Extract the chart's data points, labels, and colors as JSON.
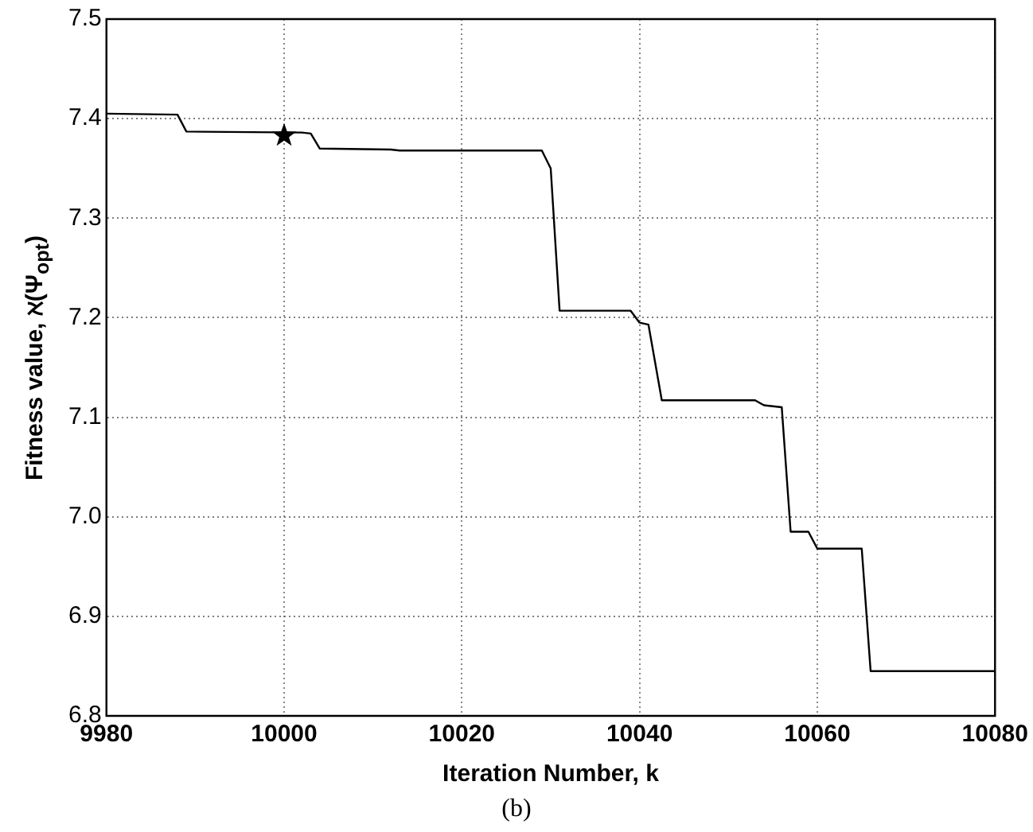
{
  "chart_data": {
    "type": "line",
    "xlabel": "Iteration Number, k",
    "ylabel": "Fitness value, ℵ(Ψ$_{opt}$)",
    "xlim": [
      9980,
      10080
    ],
    "xticks": [
      9980,
      10000,
      10020,
      10040,
      10060,
      10080
    ],
    "ylim": [
      6.8,
      7.5
    ],
    "yticks": [
      6.8,
      6.9,
      {
        "value": 7,
        "label": "7.0"
      },
      7.1,
      7.2,
      7.3,
      7.4,
      7.5
    ],
    "grid": true,
    "legend": false,
    "series": [
      {
        "type": "line",
        "color": "#000000",
        "marker": "none",
        "line_style": "solid",
        "x": [
          9980,
          9988,
          9989,
          10002,
          10003,
          10004,
          10012,
          10013,
          10029,
          10030,
          10031,
          10039,
          10040,
          10041,
          10042.5,
          10053,
          10054,
          10056,
          10057,
          10059,
          10060,
          10065,
          10066,
          10080
        ],
        "values": [
          7.405,
          7.404,
          7.387,
          7.386,
          7.385,
          7.37,
          7.369,
          7.368,
          7.368,
          7.35,
          7.207,
          7.207,
          7.195,
          7.193,
          7.117,
          7.117,
          7.112,
          7.11,
          6.985,
          6.985,
          6.968,
          6.968,
          6.845,
          6.845
        ]
      },
      {
        "type": "scatter",
        "color": "#000000",
        "marker": "star",
        "x": [
          10000
        ],
        "values": [
          7.383
        ]
      }
    ],
    "annotations": [
      "(b)"
    ]
  }
}
